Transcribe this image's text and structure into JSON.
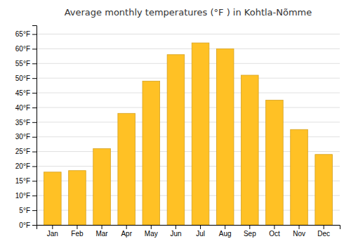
{
  "chart_data": {
    "type": "bar",
    "title": "Average monthly temperatures (°F ) in Kohtla-Nõmme",
    "categories": [
      "Jan",
      "Feb",
      "Mar",
      "Apr",
      "May",
      "Jun",
      "Jul",
      "Aug",
      "Sep",
      "Oct",
      "Nov",
      "Dec"
    ],
    "values": [
      18,
      18.5,
      26,
      38,
      49,
      58,
      62,
      60,
      51,
      42.5,
      32.5,
      24
    ],
    "color": "#FFC125",
    "ylim": [
      0,
      68
    ],
    "yticks": [
      {
        "value": 0,
        "label": "0°F"
      },
      {
        "value": 5,
        "label": "5°F"
      },
      {
        "value": 10,
        "label": "10°F"
      },
      {
        "value": 15,
        "label": "15°F"
      },
      {
        "value": 20,
        "label": "20°F"
      },
      {
        "value": 25,
        "label": "25°F"
      },
      {
        "value": 30,
        "label": "30°F"
      },
      {
        "value": 35,
        "label": "35°F"
      },
      {
        "value": 40,
        "label": "40°F"
      },
      {
        "value": 45,
        "label": "45°F"
      },
      {
        "value": 50,
        "label": "50°F"
      },
      {
        "value": 55,
        "label": "55°F"
      },
      {
        "value": 60,
        "label": "60°F"
      },
      {
        "value": 65,
        "label": "65°F"
      }
    ],
    "grid": true
  }
}
